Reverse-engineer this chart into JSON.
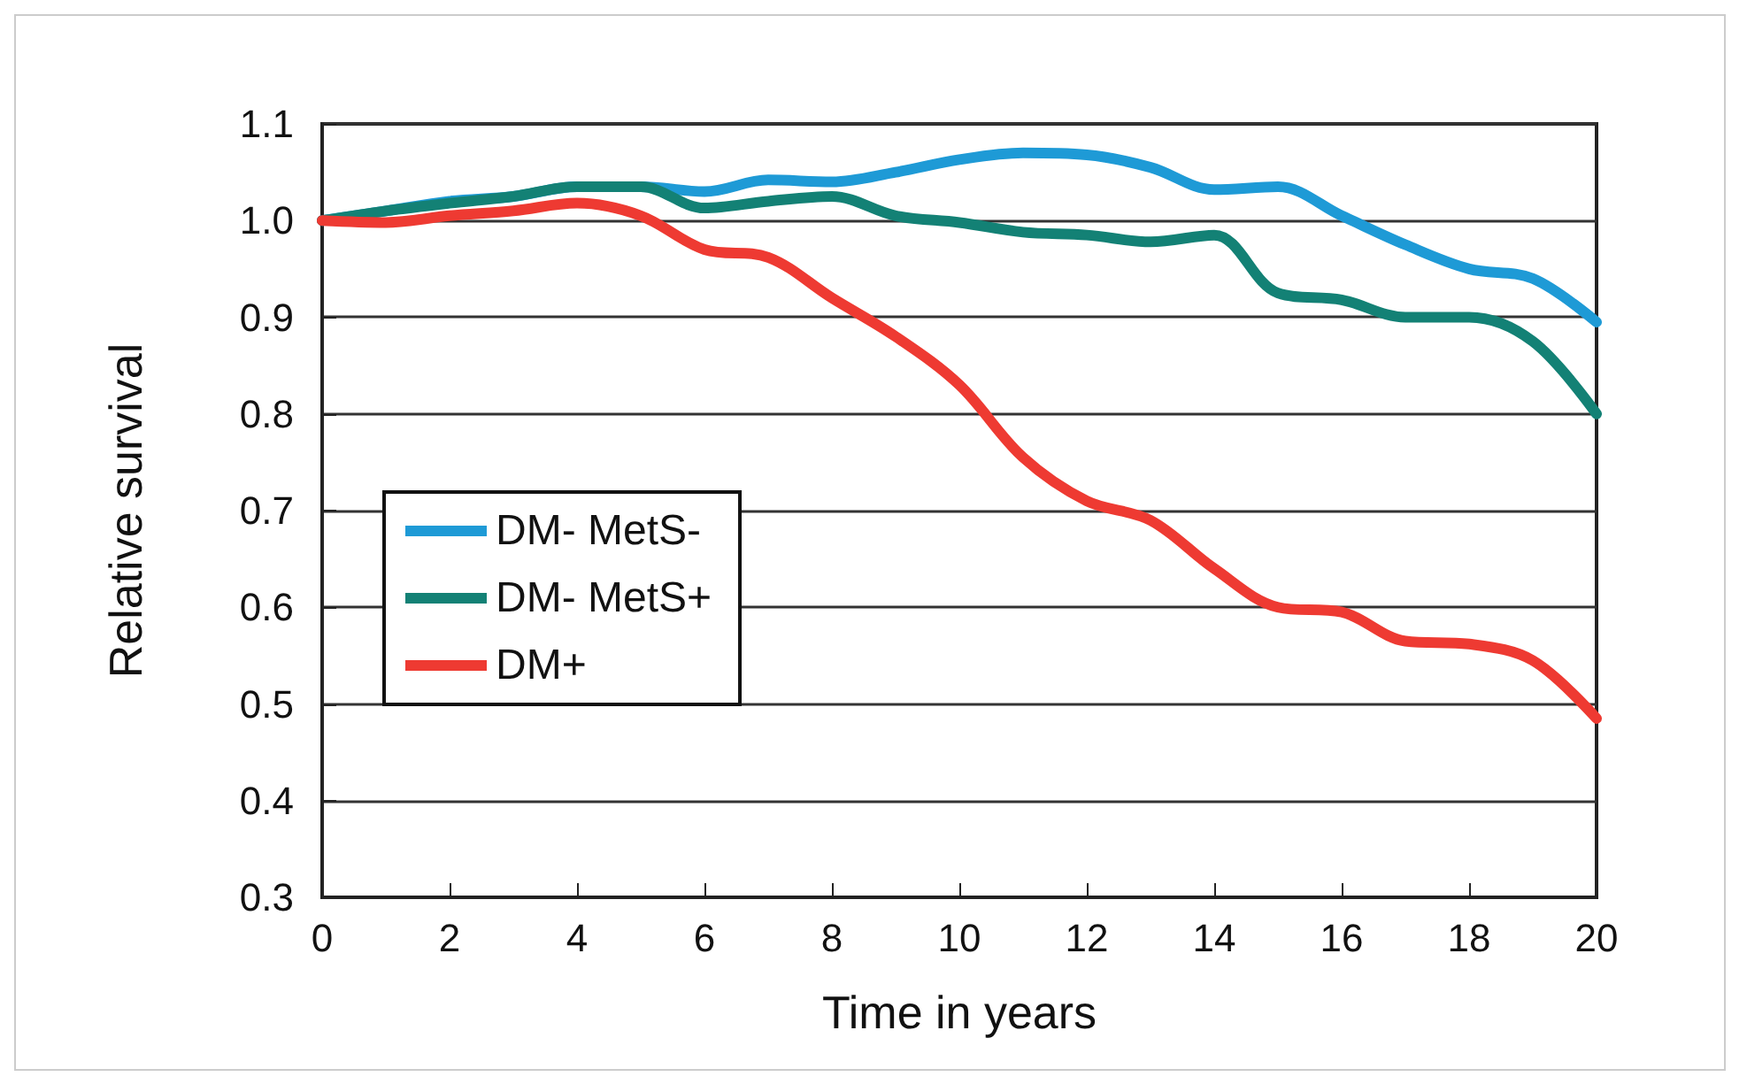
{
  "chart_data": {
    "type": "line",
    "xlabel": "Time in years",
    "ylabel": "Relative survival",
    "x": [
      0,
      1,
      2,
      3,
      4,
      5,
      6,
      7,
      8,
      9,
      10,
      11,
      12,
      13,
      14,
      15,
      16,
      17,
      18,
      19,
      20
    ],
    "series": [
      {
        "name": "DM- MetS-",
        "color": "#1e9ad6",
        "values": [
          1.0,
          1.01,
          1.02,
          1.025,
          1.035,
          1.035,
          1.03,
          1.042,
          1.04,
          1.05,
          1.063,
          1.07,
          1.068,
          1.055,
          1.032,
          1.035,
          1.005,
          0.975,
          0.95,
          0.94,
          0.895
        ]
      },
      {
        "name": "DM- MetS+",
        "color": "#138175",
        "values": [
          1.0,
          1.01,
          1.018,
          1.025,
          1.035,
          1.035,
          1.013,
          1.02,
          1.025,
          1.005,
          0.998,
          0.988,
          0.985,
          0.978,
          0.985,
          0.925,
          0.918,
          0.9,
          0.9,
          0.875,
          0.8
        ]
      },
      {
        "name": "DM+",
        "color": "#ee3a32",
        "values": [
          1.0,
          0.998,
          1.005,
          1.01,
          1.018,
          1.005,
          0.97,
          0.962,
          0.92,
          0.88,
          0.83,
          0.755,
          0.71,
          0.69,
          0.64,
          0.6,
          0.595,
          0.565,
          0.562,
          0.545,
          0.485
        ]
      }
    ],
    "xlim": [
      0,
      20
    ],
    "xticks": [
      0,
      2,
      4,
      6,
      8,
      10,
      12,
      14,
      16,
      18,
      20
    ],
    "ylim": [
      0.3,
      1.1
    ],
    "yticks": [
      0.3,
      0.4,
      0.5,
      0.6,
      0.7,
      0.8,
      0.9,
      {
        "value": 1,
        "label": "1.0"
      },
      1.1
    ],
    "grid": "y",
    "legend": "left",
    "marker": "none",
    "line_style": "solid"
  }
}
